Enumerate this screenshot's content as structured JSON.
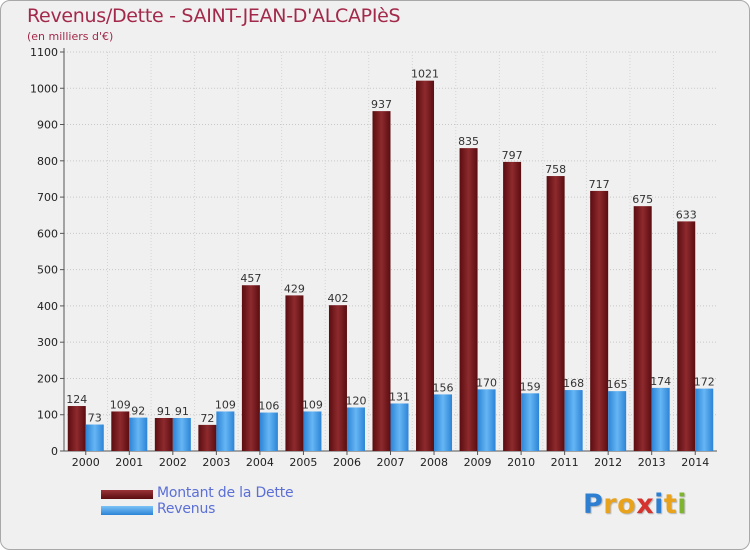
{
  "chart_data": {
    "type": "bar",
    "title": "Revenus/Dette - SAINT-JEAN-D'ALCAPIèS",
    "subtitle": "(en milliers d'€)",
    "xlabel": "",
    "ylabel": "",
    "ylim": [
      0,
      1100
    ],
    "yticks": [
      0,
      100,
      200,
      300,
      400,
      500,
      600,
      700,
      800,
      900,
      1000,
      1100
    ],
    "grid": true,
    "legend_position": "bottom-left",
    "categories": [
      "2000",
      "2001",
      "2002",
      "2003",
      "2004",
      "2005",
      "2006",
      "2007",
      "2008",
      "2009",
      "2010",
      "2011",
      "2012",
      "2013",
      "2014"
    ],
    "series": [
      {
        "name": "Montant de la Dette",
        "color": "#7a1a1e",
        "values": [
          124,
          109,
          91,
          72,
          457,
          429,
          402,
          937,
          1021,
          835,
          797,
          758,
          717,
          675,
          633
        ]
      },
      {
        "name": "Revenus",
        "color": "#3d9be6",
        "values": [
          73,
          92,
          91,
          109,
          106,
          109,
          120,
          131,
          156,
          170,
          159,
          168,
          165,
          174,
          172
        ]
      }
    ]
  },
  "logo": {
    "letters": [
      "P",
      "r",
      "o",
      "x",
      "i",
      "t",
      "i"
    ],
    "colors": [
      "#2e7fd1",
      "#e8a21b",
      "#e8a21b",
      "#d6322e",
      "#2e7fd1",
      "#e8a21b",
      "#7fb52e"
    ]
  }
}
